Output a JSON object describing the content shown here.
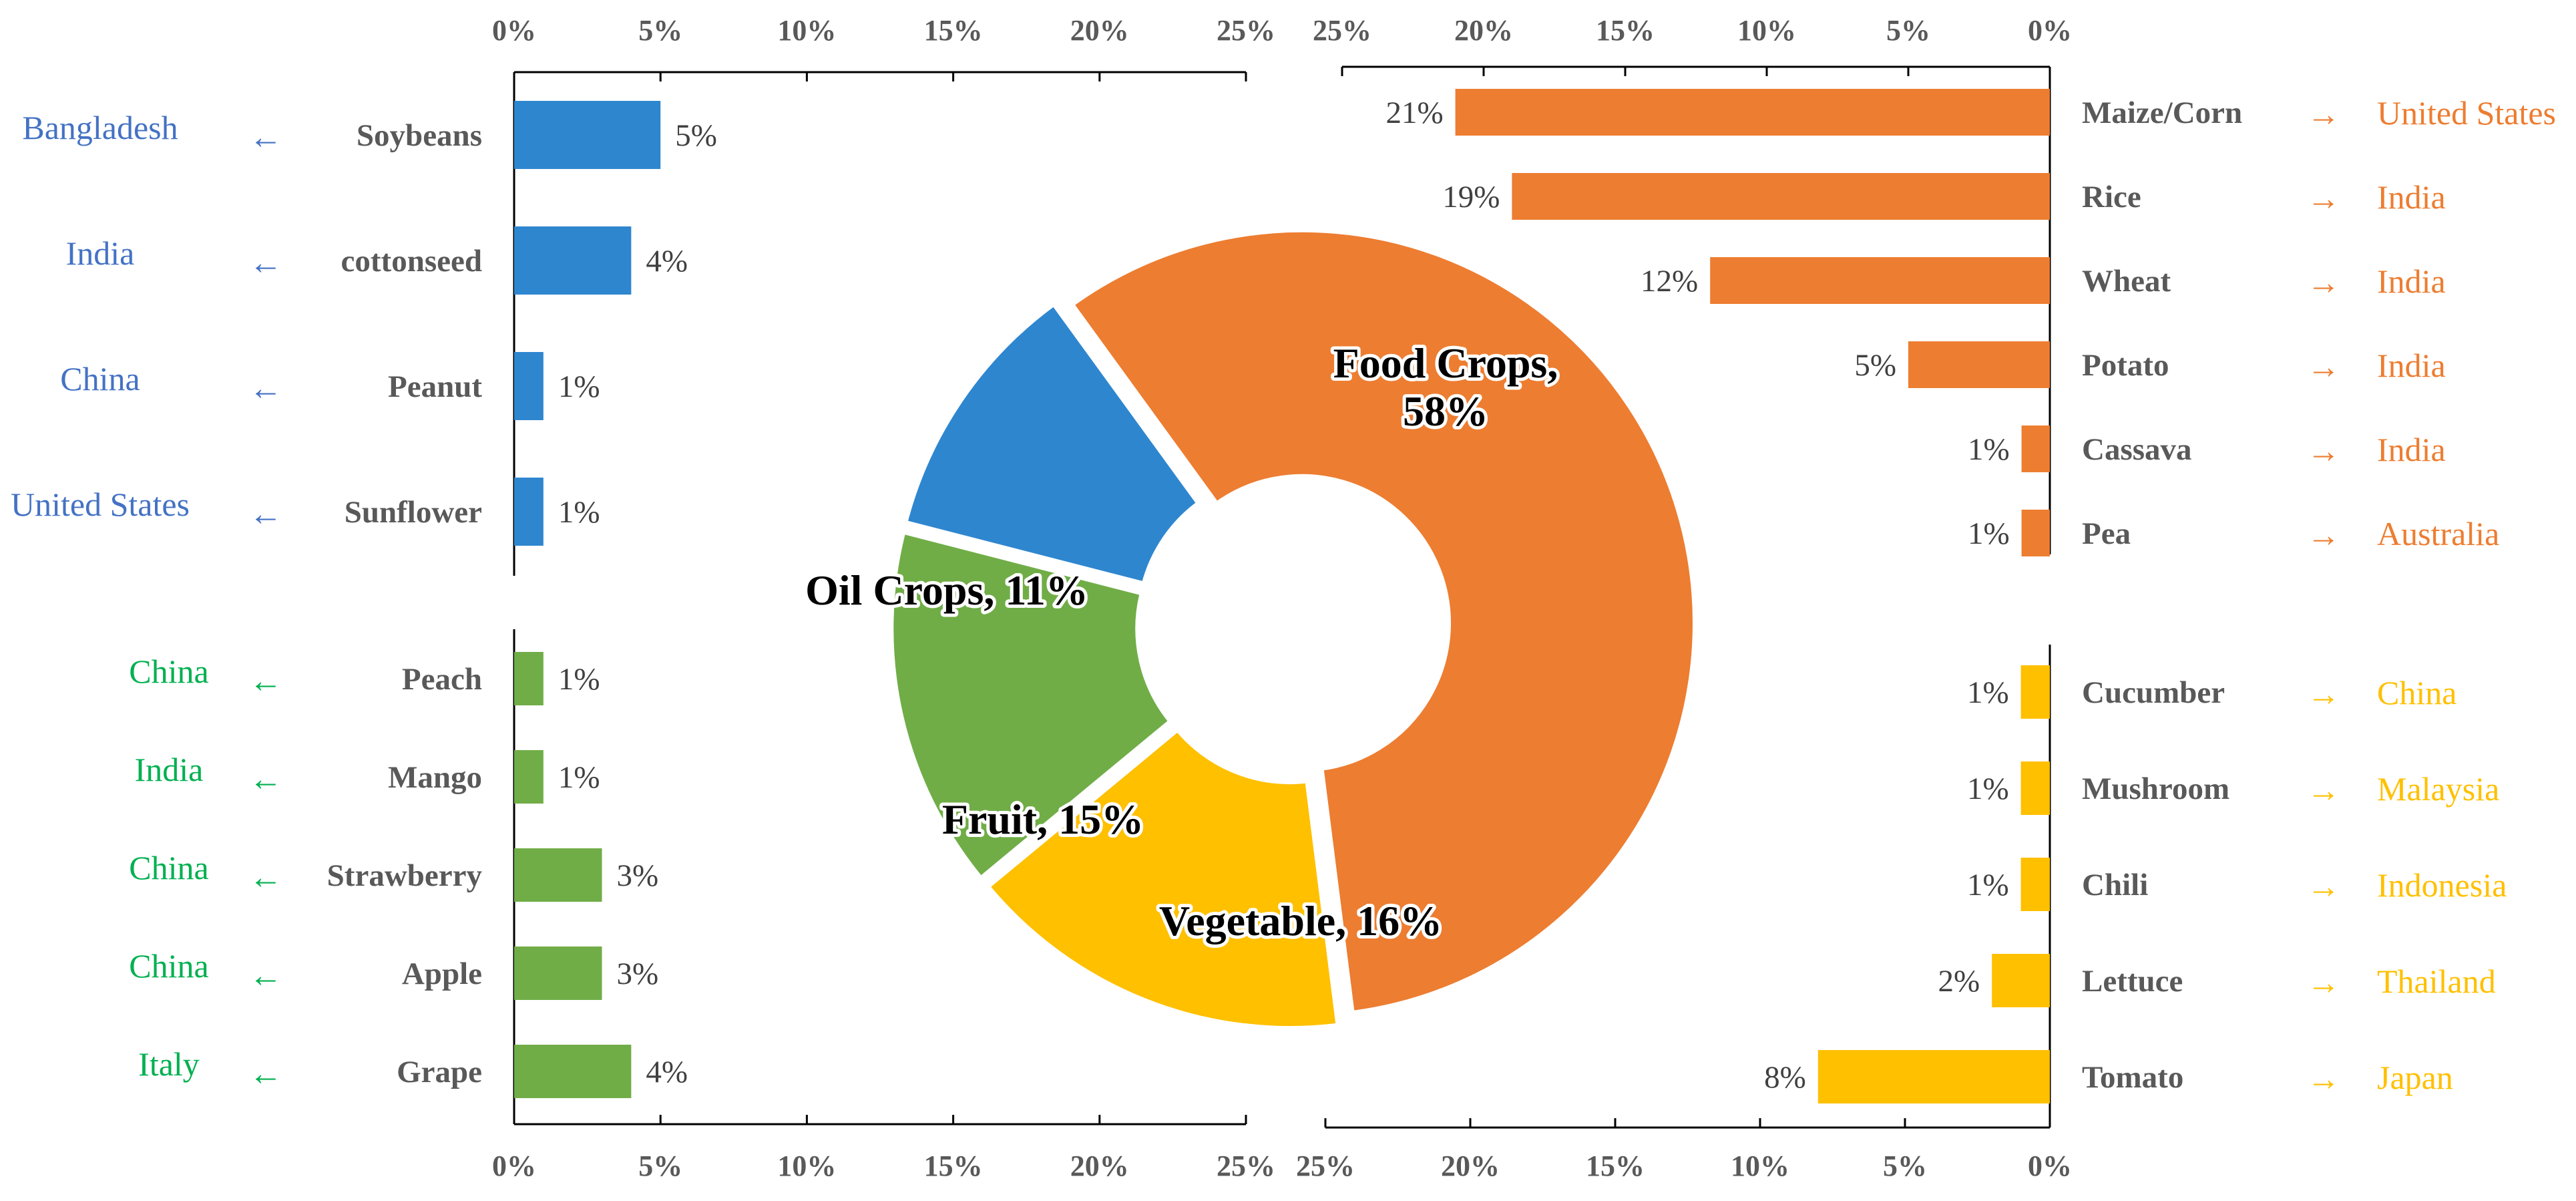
{
  "colors": {
    "food": "#ED7D31",
    "oil": "#2E86CF",
    "fruit": "#70AD47",
    "vegetable": "#FFC000",
    "oil_text": "#4472C4",
    "fruit_text": "#00B050",
    "food_text": "#ED7D31",
    "veg_text": "#FFC000"
  },
  "chart_data": [
    {
      "type": "pie",
      "name": "donut",
      "title": "",
      "slices": [
        {
          "label": "Food Crops, 58%",
          "category": "Food Crops",
          "value": 58,
          "color": "food"
        },
        {
          "label": "Vegetable, 16%",
          "category": "Vegetable",
          "value": 16,
          "color": "vegetable"
        },
        {
          "label": "Fruit, 15%",
          "category": "Fruit",
          "value": 15,
          "color": "fruit"
        },
        {
          "label": "Oil Crops, 11%",
          "category": "Oil Crops",
          "value": 11,
          "color": "oil"
        }
      ]
    },
    {
      "type": "bar",
      "name": "oil",
      "title": "Oil Crops",
      "orientation": "horizontal",
      "direction": "left-to-right",
      "xlim": [
        0,
        25
      ],
      "ticks": [
        "0%",
        "5%",
        "10%",
        "15%",
        "20%",
        "25%"
      ],
      "tick_axis": "top",
      "color": "oil",
      "text_color": "oil_text",
      "arrow": "←",
      "categories": [
        "Soybeans",
        "cottonseed",
        "Peanut",
        "Sunflower"
      ],
      "values": [
        5,
        4,
        1,
        1
      ],
      "labels": [
        "5%",
        "4%",
        "1%",
        "1%"
      ],
      "countries": [
        "Bangladesh",
        "India",
        "China",
        "United States"
      ]
    },
    {
      "type": "bar",
      "name": "fruit",
      "title": "Fruit",
      "orientation": "horizontal",
      "direction": "left-to-right",
      "xlim": [
        0,
        25
      ],
      "ticks": [
        "0%",
        "5%",
        "10%",
        "15%",
        "20%",
        "25%"
      ],
      "tick_axis": "bottom",
      "color": "fruit",
      "text_color": "fruit_text",
      "arrow": "←",
      "categories": [
        "Peach",
        "Mango",
        "Strawberry",
        "Apple",
        "Grape"
      ],
      "values": [
        1,
        1,
        3,
        3,
        4
      ],
      "labels": [
        "1%",
        "1%",
        "3%",
        "3%",
        "4%"
      ],
      "countries": [
        "China",
        "India",
        "China",
        "China",
        "Italy"
      ]
    },
    {
      "type": "bar",
      "name": "food",
      "title": "Food Crops",
      "orientation": "horizontal",
      "direction": "right-to-left",
      "xlim": [
        0,
        25
      ],
      "ticks": [
        "25%",
        "20%",
        "15%",
        "10%",
        "5%",
        "0%"
      ],
      "tick_axis": "top",
      "color": "food",
      "text_color": "food_text",
      "arrow": "→",
      "categories": [
        "Maize/Corn",
        "Rice",
        "Wheat",
        "Potato",
        "Cassava",
        "Pea"
      ],
      "values": [
        21,
        19,
        12,
        5,
        1,
        1
      ],
      "labels": [
        "21%",
        "19%",
        "12%",
        "5%",
        "1%",
        "1%"
      ],
      "countries": [
        "United States",
        "India",
        "India",
        "India",
        "India",
        "Australia"
      ]
    },
    {
      "type": "bar",
      "name": "vegetable",
      "title": "Vegetable",
      "orientation": "horizontal",
      "direction": "right-to-left",
      "xlim": [
        0,
        25
      ],
      "ticks": [
        "25%",
        "20%",
        "15%",
        "10%",
        "5%",
        "0%"
      ],
      "tick_axis": "bottom",
      "color": "vegetable",
      "text_color": "veg_text",
      "arrow": "→",
      "categories": [
        "Cucumber",
        "Mushroom",
        "Chili",
        "Lettuce",
        "Tomato"
      ],
      "values": [
        1,
        1,
        1,
        2,
        8
      ],
      "labels": [
        "1%",
        "1%",
        "1%",
        "2%",
        "8%"
      ],
      "countries": [
        "China",
        "Malaysia",
        "Indonesia",
        "Thailand",
        "Japan"
      ]
    }
  ]
}
